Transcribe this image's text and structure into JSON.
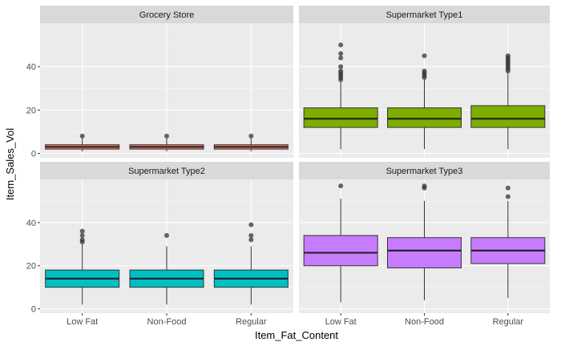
{
  "chart_data": {
    "type": "boxplot",
    "xlabel": "Item_Fat_Content",
    "ylabel": "Item_Sales_Vol",
    "categories": [
      "Low Fat",
      "Non-Food",
      "Regular"
    ],
    "y_ticks": [
      0,
      20,
      40
    ],
    "ylim": [
      -2,
      60
    ],
    "grid": true,
    "facets": [
      {
        "name": "Grocery Store",
        "color": "#F8766D",
        "boxes": [
          {
            "category": "Low Fat",
            "whisker_low": 1,
            "q1": 2,
            "median": 3,
            "q3": 4,
            "whisker_high": 7,
            "outliers": [
              8
            ]
          },
          {
            "category": "Non-Food",
            "whisker_low": 1,
            "q1": 2,
            "median": 3,
            "q3": 4,
            "whisker_high": 7,
            "outliers": [
              8
            ]
          },
          {
            "category": "Regular",
            "whisker_low": 1,
            "q1": 2,
            "median": 3,
            "q3": 4,
            "whisker_high": 7,
            "outliers": [
              8
            ]
          }
        ]
      },
      {
        "name": "Supermarket Type1",
        "color": "#7CAE00",
        "boxes": [
          {
            "category": "Low Fat",
            "whisker_low": 2,
            "q1": 12,
            "median": 16,
            "q3": 21,
            "whisker_high": 33,
            "outliers": [
              34,
              35,
              36,
              37,
              38,
              40,
              44,
              46,
              50
            ]
          },
          {
            "category": "Non-Food",
            "whisker_low": 2,
            "q1": 12,
            "median": 16,
            "q3": 21,
            "whisker_high": 34,
            "outliers": [
              35,
              36,
              37,
              38,
              45
            ]
          },
          {
            "category": "Regular",
            "whisker_low": 2,
            "q1": 12,
            "median": 16,
            "q3": 22,
            "whisker_high": 37,
            "outliers": [
              38,
              39,
              40,
              41,
              42,
              43,
              44,
              45
            ]
          }
        ]
      },
      {
        "name": "Supermarket Type2",
        "color": "#00BFC4",
        "boxes": [
          {
            "category": "Low Fat",
            "whisker_low": 2,
            "q1": 10,
            "median": 14,
            "q3": 18,
            "whisker_high": 30,
            "outliers": [
              31,
              32,
              34,
              36
            ]
          },
          {
            "category": "Non-Food",
            "whisker_low": 2,
            "q1": 10,
            "median": 14,
            "q3": 18,
            "whisker_high": 29,
            "outliers": [
              34
            ]
          },
          {
            "category": "Regular",
            "whisker_low": 2,
            "q1": 10,
            "median": 14,
            "q3": 18,
            "whisker_high": 29,
            "outliers": [
              32,
              34,
              39
            ]
          }
        ]
      },
      {
        "name": "Supermarket Type3",
        "color": "#C77CFF",
        "boxes": [
          {
            "category": "Low Fat",
            "whisker_low": 3,
            "q1": 20,
            "median": 26,
            "q3": 34,
            "whisker_high": 51,
            "outliers": [
              57
            ]
          },
          {
            "category": "Non-Food",
            "whisker_low": 4,
            "q1": 19,
            "median": 27,
            "q3": 33,
            "whisker_high": 50,
            "outliers": [
              56,
              57
            ]
          },
          {
            "category": "Regular",
            "whisker_low": 5,
            "q1": 21,
            "median": 27,
            "q3": 33,
            "whisker_high": 50,
            "outliers": [
              52,
              56
            ]
          }
        ]
      }
    ]
  }
}
